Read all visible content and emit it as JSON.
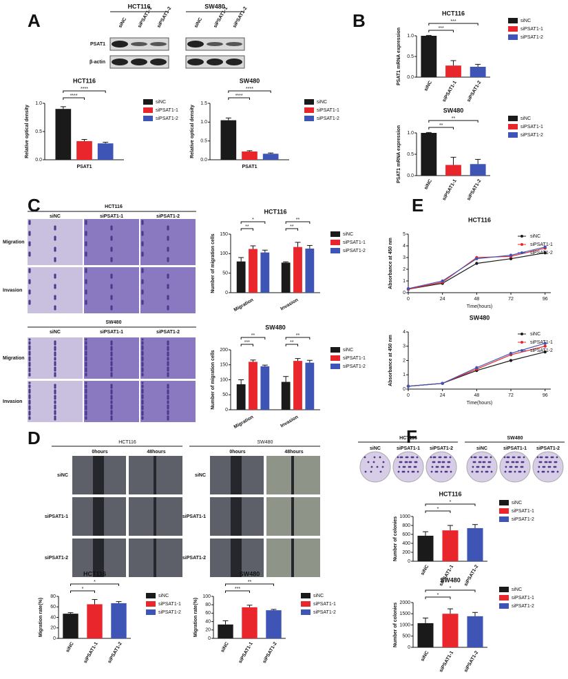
{
  "panel_labels": [
    "A",
    "B",
    "C",
    "D",
    "E",
    "F"
  ],
  "blot": {
    "cell_lines": [
      "HCT116",
      "SW480"
    ],
    "lanes": [
      "siNC",
      "siPSAT1-1",
      "siPSAT1-2"
    ],
    "proteins": [
      "PSAT1",
      "β-actin"
    ]
  },
  "transwell": {
    "cell_lines": [
      "HCT116",
      "SW480"
    ],
    "columns": [
      "siNC",
      "siPSAT1-1",
      "siPSAT1-2"
    ],
    "rows": [
      "Migration",
      "Invasion"
    ]
  },
  "wound": {
    "cell_lines": [
      "HCT116",
      "SW480"
    ],
    "times": [
      "0hours",
      "48hours"
    ],
    "rows": [
      "siNC",
      "siPSAT1-1",
      "siPSAT1-2"
    ]
  },
  "colony": {
    "cell_lines": [
      "HCT116",
      "SW480"
    ],
    "columns": [
      "siNC",
      "siPSAT1-1",
      "siPSAT1-2"
    ]
  },
  "chart_data": [
    {
      "type": "bar",
      "title": "HCT116",
      "ylabel": "Relative optical density",
      "categories": [
        "PSAT1"
      ],
      "series": [
        {
          "name": "siNC",
          "color": "#1a1a1a",
          "values": [
            0.9
          ],
          "errors": [
            0.04
          ]
        },
        {
          "name": "siPSAT1-1",
          "color": "#e8262b",
          "values": [
            0.33
          ],
          "errors": [
            0.03
          ]
        },
        {
          "name": "siPSAT1-2",
          "color": "#3f55b5",
          "values": [
            0.29
          ],
          "errors": [
            0.02
          ]
        }
      ],
      "ylim": [
        0,
        1
      ],
      "yticks": [
        {
          "value": 0,
          "label": "0.0"
        },
        0.5,
        {
          "value": 1,
          "label": "1.0"
        }
      ],
      "annotations": [
        "****",
        "****"
      ]
    },
    {
      "type": "bar",
      "title": "SW480",
      "ylabel": "Relative optical density",
      "categories": [
        "PSAT1"
      ],
      "series": [
        {
          "name": "siNC",
          "color": "#1a1a1a",
          "values": [
            1.05
          ],
          "errors": [
            0.06
          ]
        },
        {
          "name": "siPSAT1-1",
          "color": "#e8262b",
          "values": [
            0.22
          ],
          "errors": [
            0.02
          ]
        },
        {
          "name": "siPSAT1-2",
          "color": "#3f55b5",
          "values": [
            0.16
          ],
          "errors": [
            0.02
          ]
        }
      ],
      "ylim": [
        0,
        1.5
      ],
      "yticks": [
        {
          "value": 0,
          "label": "0.0"
        },
        0.5,
        {
          "value": 1,
          "label": "1.0"
        },
        1.5
      ],
      "annotations": [
        "****",
        "****"
      ]
    },
    {
      "type": "bar",
      "title": "HCT116",
      "ylabel": "PSAT1 mRNA expression",
      "categories": [
        "siNC",
        "siPSAT1-1",
        "siPSAT1-2"
      ],
      "values": [
        1.0,
        0.28,
        0.25
      ],
      "errors": [
        0.01,
        0.12,
        0.06
      ],
      "colors": [
        "#1a1a1a",
        "#e8262b",
        "#3f55b5"
      ],
      "ylim": [
        0,
        1
      ],
      "yticks": [
        {
          "value": 0,
          "label": "0.0"
        },
        0.5,
        {
          "value": 1,
          "label": "1.0"
        }
      ],
      "annotations": [
        "***",
        "***"
      ]
    },
    {
      "type": "bar",
      "title": "SW480",
      "ylabel": "PSAT1 mRNA expression",
      "categories": [
        "siNC",
        "siPSAT1-1",
        "siPSAT1-2"
      ],
      "values": [
        1.0,
        0.25,
        0.27
      ],
      "errors": [
        0.01,
        0.18,
        0.11
      ],
      "colors": [
        "#1a1a1a",
        "#e8262b",
        "#3f55b5"
      ],
      "ylim": [
        0,
        1
      ],
      "yticks": [
        {
          "value": 0,
          "label": "0.0"
        },
        0.5,
        {
          "value": 1,
          "label": "1.0"
        }
      ],
      "annotations": [
        "**",
        "**"
      ]
    },
    {
      "type": "bar",
      "title": "HCT116",
      "ylabel": "Number of migration cells",
      "categories": [
        "Migration",
        "Invasion"
      ],
      "series": [
        {
          "name": "siNC",
          "color": "#1a1a1a",
          "values": [
            80,
            77
          ],
          "errors": [
            10,
            2
          ]
        },
        {
          "name": "siPSAT1-1",
          "color": "#e8262b",
          "values": [
            112,
            117
          ],
          "errors": [
            8,
            12
          ]
        },
        {
          "name": "siPSAT1-2",
          "color": "#3f55b5",
          "values": [
            103,
            113
          ],
          "errors": [
            6,
            8
          ]
        }
      ],
      "ylim": [
        0,
        150
      ],
      "yticks": [
        0,
        50,
        100,
        150
      ],
      "annotations": [
        "**",
        "*",
        "**",
        "**"
      ]
    },
    {
      "type": "bar",
      "title": "SW480",
      "ylabel": "Number of migration cells",
      "categories": [
        "Migration",
        "Invasion"
      ],
      "series": [
        {
          "name": "siNC",
          "color": "#1a1a1a",
          "values": [
            85,
            93
          ],
          "errors": [
            15,
            18
          ]
        },
        {
          "name": "siPSAT1-1",
          "color": "#e8262b",
          "values": [
            160,
            163
          ],
          "errors": [
            6,
            8
          ]
        },
        {
          "name": "siPSAT1-2",
          "color": "#3f55b5",
          "values": [
            145,
            157
          ],
          "errors": [
            4,
            8
          ]
        }
      ],
      "ylim": [
        0,
        200
      ],
      "yticks": [
        0,
        50,
        100,
        150,
        200
      ],
      "annotations": [
        "***",
        "**",
        "**",
        "**"
      ]
    },
    {
      "type": "line",
      "title": "HCT116",
      "ylabel": "Absorbance at 450 nm",
      "xlabel": "Time(hours)",
      "x": [
        0,
        24,
        48,
        72,
        96
      ],
      "series": [
        {
          "name": "siNC",
          "color": "#1a1a1a",
          "values": [
            0.3,
            0.8,
            2.5,
            2.9,
            3.4
          ]
        },
        {
          "name": "siPSAT1-1",
          "color": "#e8262b",
          "values": [
            0.3,
            0.9,
            3.0,
            3.1,
            3.8
          ]
        },
        {
          "name": "siPSAT1-2",
          "color": "#3f55b5",
          "values": [
            0.35,
            1.0,
            2.9,
            3.2,
            3.9
          ]
        }
      ],
      "xlim": [
        0,
        100
      ],
      "xticks": [
        0,
        24,
        48,
        72,
        96
      ],
      "ylim": [
        0,
        5
      ],
      "yticks": [
        0,
        1,
        2,
        3,
        4,
        5
      ]
    },
    {
      "type": "line",
      "title": "SW480",
      "ylabel": "Absorbance at 450 nm",
      "xlabel": "Time(hours)",
      "x": [
        0,
        24,
        48,
        72,
        96
      ],
      "series": [
        {
          "name": "siNC",
          "color": "#1a1a1a",
          "values": [
            0.2,
            0.4,
            1.3,
            2.0,
            2.6
          ]
        },
        {
          "name": "siPSAT1-1",
          "color": "#e8262b",
          "values": [
            0.2,
            0.4,
            1.4,
            2.4,
            3.0
          ]
        },
        {
          "name": "siPSAT1-2",
          "color": "#3f55b5",
          "values": [
            0.2,
            0.4,
            1.5,
            2.5,
            3.2
          ]
        }
      ],
      "xlim": [
        0,
        100
      ],
      "xticks": [
        0,
        24,
        48,
        72,
        96
      ],
      "ylim": [
        0,
        4
      ],
      "yticks": [
        0,
        1,
        2,
        3,
        4
      ]
    },
    {
      "type": "bar",
      "title": "HCT116",
      "ylabel": "Migration rate(%)",
      "categories": [
        "siNC",
        "siPSAT1-1",
        "siPSAT1-2"
      ],
      "values": [
        47,
        65,
        67
      ],
      "errors": [
        2,
        9,
        3
      ],
      "colors": [
        "#1a1a1a",
        "#e8262b",
        "#3f55b5"
      ],
      "ylim": [
        0,
        80
      ],
      "yticks": [
        0,
        20,
        40,
        60,
        80
      ],
      "annotations": [
        "*",
        "*"
      ]
    },
    {
      "type": "bar",
      "title": "SW480",
      "ylabel": "Migration rate(%)",
      "categories": [
        "siNC",
        "siPSAT1-1",
        "siPSAT1-2"
      ],
      "values": [
        33,
        74,
        67
      ],
      "errors": [
        9,
        5,
        2
      ],
      "colors": [
        "#1a1a1a",
        "#e8262b",
        "#3f55b5"
      ],
      "ylim": [
        0,
        100
      ],
      "yticks": [
        0,
        20,
        40,
        60,
        80,
        100
      ],
      "annotations": [
        "***",
        "**"
      ]
    },
    {
      "type": "bar",
      "title": "HCT116",
      "ylabel": "Number of colonies",
      "categories": [
        "siNC",
        "siPSAT1-1",
        "siPSAT1-2"
      ],
      "values": [
        570,
        690,
        740
      ],
      "errors": [
        90,
        110,
        80
      ],
      "colors": [
        "#1a1a1a",
        "#e8262b",
        "#3f55b5"
      ],
      "ylim": [
        0,
        1000
      ],
      "yticks": [
        0,
        200,
        400,
        600,
        800,
        1000
      ],
      "annotations": [
        "*",
        "*"
      ]
    },
    {
      "type": "bar",
      "title": "SW480",
      "ylabel": "Number of colonies",
      "categories": [
        "siNC",
        "siPSAT1-1",
        "siPSAT1-2"
      ],
      "values": [
        1080,
        1500,
        1390
      ],
      "errors": [
        230,
        220,
        170
      ],
      "colors": [
        "#1a1a1a",
        "#e8262b",
        "#3f55b5"
      ],
      "ylim": [
        0,
        2000
      ],
      "yticks": [
        0,
        500,
        1000,
        1500,
        2000
      ],
      "annotations": [
        "*",
        "*"
      ]
    }
  ]
}
